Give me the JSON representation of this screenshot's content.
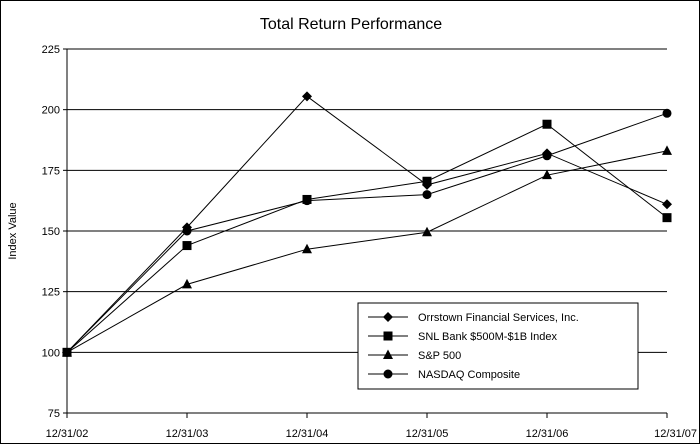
{
  "chart_data": {
    "type": "line",
    "title": "Total Return Performance",
    "xlabel": "",
    "ylabel": "Index Value",
    "x": [
      "12/31/02",
      "12/31/03",
      "12/31/04",
      "12/31/05",
      "12/31/06",
      "12/31/07"
    ],
    "ylim": [
      75,
      225
    ],
    "yticks": [
      75,
      100,
      125,
      150,
      175,
      200,
      225
    ],
    "grid": "horizontal",
    "legend_position": "bottom-right",
    "series": [
      {
        "name": "Orrstown Financial Services, Inc.",
        "marker": "diamond",
        "values": [
          100,
          151.5,
          205.5,
          169,
          182,
          161
        ]
      },
      {
        "name": "SNL Bank $500M-$1B Index",
        "marker": "square",
        "values": [
          100,
          144,
          163,
          170.5,
          194,
          155.5
        ]
      },
      {
        "name": "S&P 500",
        "marker": "triangle",
        "values": [
          100,
          128,
          142.5,
          149.5,
          173,
          183
        ]
      },
      {
        "name": "NASDAQ Composite",
        "marker": "circle",
        "values": [
          100,
          150,
          162.5,
          165,
          181,
          198.5
        ]
      }
    ]
  }
}
